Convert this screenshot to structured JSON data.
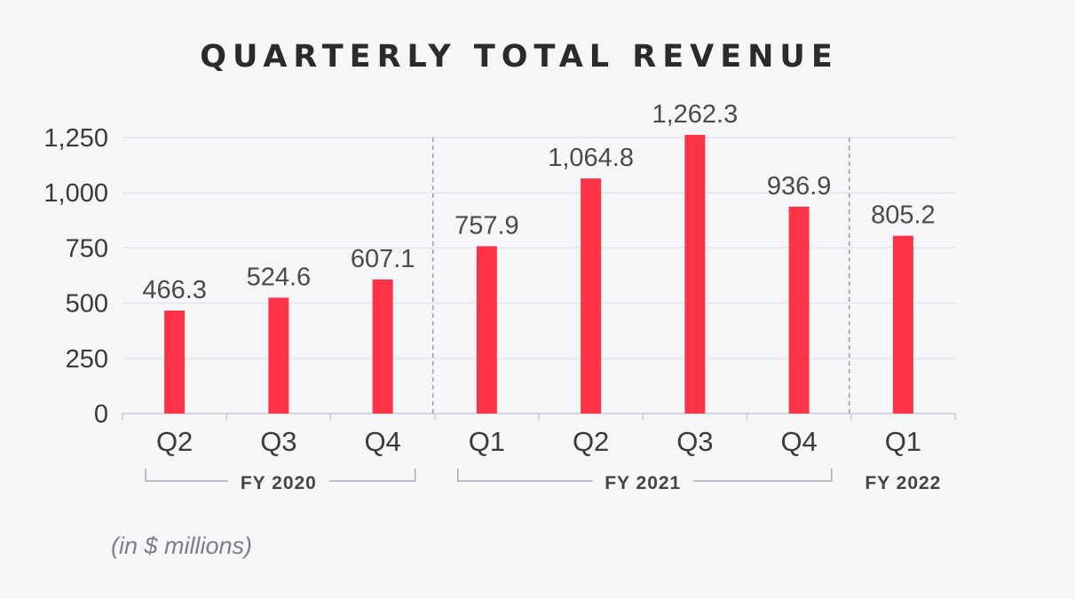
{
  "chart_data": {
    "type": "bar",
    "title": "QUARTERLY TOTAL REVENUE",
    "unit_note": "(in $ millions)",
    "categories": [
      "Q2",
      "Q3",
      "Q4",
      "Q1",
      "Q2",
      "Q3",
      "Q4",
      "Q1"
    ],
    "values": [
      466.3,
      524.6,
      607.1,
      757.9,
      1064.8,
      1262.3,
      936.9,
      805.2
    ],
    "value_labels": [
      "466.3",
      "524.6",
      "607.1",
      "757.9",
      "1,064.8",
      "1,262.3",
      "936.9",
      "805.2"
    ],
    "groups": [
      {
        "label": "FY 2020",
        "start": 0,
        "end": 2
      },
      {
        "label": "FY 2021",
        "start": 3,
        "end": 6
      },
      {
        "label": "FY 2022",
        "start": 7,
        "end": 7
      }
    ],
    "ylim": [
      0,
      1250
    ],
    "yticks": [
      0,
      250,
      500,
      750,
      1000,
      1250
    ],
    "ytick_labels": [
      "0",
      "250",
      "500",
      "750",
      "1,000",
      "1,250"
    ],
    "grid": true,
    "bar_color": "#ff3347"
  }
}
